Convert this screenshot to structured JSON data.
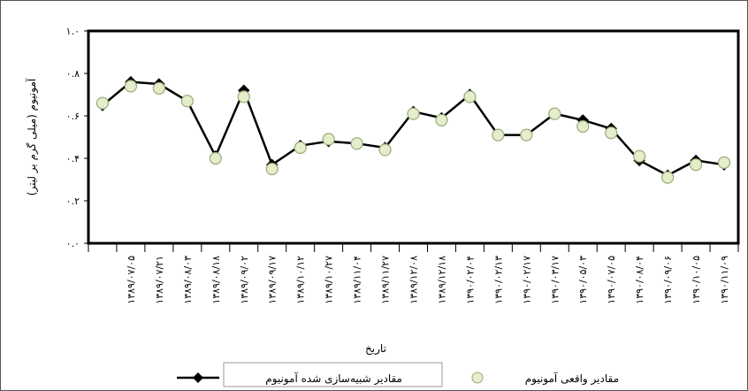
{
  "chart_data": {
    "type": "line",
    "y_label": "آمونیوم (میلی گرم بر لیتر)",
    "x_label": "تاریخ",
    "categories": [
      null,
      "۱۳۸۹/۰۷/۰۵",
      "۱۳۸۹/۰۷/۲۱",
      "۱۳۸۹/۰۸/۰۳",
      "۱۳۸۹/۰۸/۱۸",
      "۱۳۸۹/۰۹/۰۲",
      "۱۳۸۹/۰۹/۱۷",
      "۱۳۸۹/۱۰/۱۲",
      "۱۳۸۹/۱۰/۲۷",
      "۱۳۸۹/۱۱/۰۴",
      "۱۳۸۹/۱۱/۲۷",
      "۱۳۸۹/۱۲/۰۸",
      "۱۳۸۹/۱۲/۱۸",
      "۱۳۹۰/۰۲/۰۴",
      "۱۳۹۰/۰۲/۱۳",
      "۱۳۹۰/۰۲/۱۷",
      "۱۳۹۰/۰۳/۱۷",
      "۱۳۹۰/۰۵/۰۳",
      "۱۳۹۰/۰۷/۰۵",
      "۱۳۹۰/۰۸/۰۴",
      "۱۳۹۰/۰۹/۰۶",
      "۱۳۹۰/۱۰/۰۵",
      "۱۳۹۰/۱۱/۰۹"
    ],
    "series": [
      {
        "name": "مقادیر شبیه‌سازی شده آمونیوم",
        "color": "#000000",
        "line": true,
        "marker": "diamond",
        "values": [
          0.65,
          0.76,
          0.75,
          0.67,
          0.41,
          0.72,
          0.37,
          0.46,
          0.48,
          0.47,
          0.45,
          0.62,
          0.59,
          0.7,
          0.51,
          0.51,
          0.61,
          0.58,
          0.54,
          0.39,
          0.32,
          0.39,
          0.37
        ]
      },
      {
        "name": "مقادیر واقعی آمونیوم",
        "color": "#e4eecb",
        "line": false,
        "marker": "circle",
        "values": [
          0.66,
          0.74,
          0.73,
          0.67,
          0.4,
          0.69,
          0.35,
          0.45,
          0.49,
          0.47,
          0.44,
          0.61,
          0.58,
          0.69,
          0.51,
          0.51,
          0.61,
          0.55,
          0.52,
          0.41,
          0.31,
          0.37,
          0.38
        ]
      }
    ],
    "ylim": [
      0,
      1
    ],
    "yticks": [
      {
        "value": 0,
        "label": "۰.۰"
      },
      {
        "value": 0.2,
        "label": "۰.۲"
      },
      {
        "value": 0.4,
        "label": "۰.۴"
      },
      {
        "value": 0.6,
        "label": "۰.۶"
      },
      {
        "value": 0.8,
        "label": "۰.۸"
      },
      {
        "value": 1,
        "label": "۱.۰"
      }
    ]
  }
}
